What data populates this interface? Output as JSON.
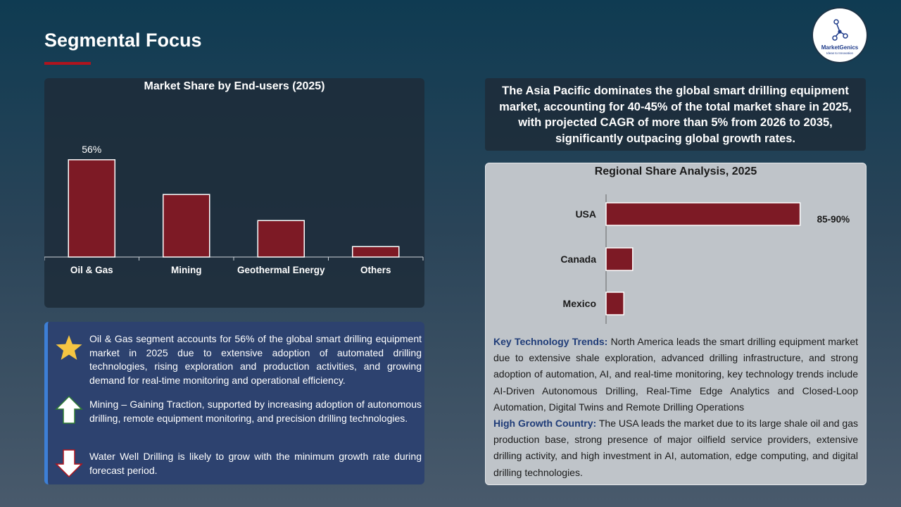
{
  "header": {
    "title": "Segmental Focus"
  },
  "logo": {
    "name": "MarketGenics",
    "tagline": "Ideas to Innovation"
  },
  "colors": {
    "accent_red": "#b0141e",
    "bar_fill": "#7d1a25",
    "heading_blue": "#1f3c78"
  },
  "chart_data": [
    {
      "type": "bar",
      "title": "Market Share by End-users (2025)",
      "categories": [
        "Oil & Gas",
        "Mining",
        "Geothermal Energy",
        "Others"
      ],
      "values": [
        56,
        36,
        21,
        6
      ],
      "data_labels": [
        "56%",
        "",
        "",
        ""
      ],
      "ylim": [
        0,
        60
      ],
      "grid": false,
      "xlabel": "",
      "ylabel": ""
    },
    {
      "type": "bar",
      "orientation": "horizontal",
      "title": "Regional Share Analysis, 2025",
      "categories": [
        "USA",
        "Canada",
        "Mexico"
      ],
      "values": [
        87.5,
        12,
        8
      ],
      "data_labels": [
        "85-90%",
        "",
        ""
      ],
      "xlim": [
        0,
        100
      ],
      "grid": false,
      "xlabel": "",
      "ylabel": ""
    }
  ],
  "bullets": [
    {
      "icon": "star-icon",
      "text": "Oil & Gas segment accounts for 56% of the global smart drilling equipment market in 2025 due to extensive adoption of automated drilling technologies, rising exploration and production activities, and growing demand for real-time monitoring and operational efficiency."
    },
    {
      "icon": "arrow-up-icon",
      "text": "Mining – Gaining Traction, supported by increasing adoption of autonomous drilling, remote equipment monitoring, and precision drilling technologies."
    },
    {
      "icon": "arrow-down-icon",
      "text": "Water Well Drilling is likely to grow with the minimum growth rate during forecast period."
    }
  ],
  "highlight": {
    "text": "The Asia Pacific dominates the global smart drilling equipment market, accounting for 40-45% of the total market share in 2025, with projected CAGR of more than 5% from 2026 to 2035, significantly outpacing global growth rates."
  },
  "region_notes": {
    "trends_heading": "Key Technology Trends:",
    "trends_text": " North America leads the smart drilling equipment market due to extensive shale exploration, advanced drilling infrastructure, and strong adoption of automation, AI, and real-time monitoring, key technology trends include AI-Driven Autonomous Drilling, Real-Time Edge Analytics and Closed-Loop Automation, Digital Twins and Remote Drilling Operations",
    "growth_heading": "High Growth Country:",
    "growth_text": " The USA leads the market due to its large shale oil and gas production base, strong presence of major oilfield service providers, extensive drilling activity, and high investment in AI, automation, edge computing, and digital drilling technologies."
  }
}
